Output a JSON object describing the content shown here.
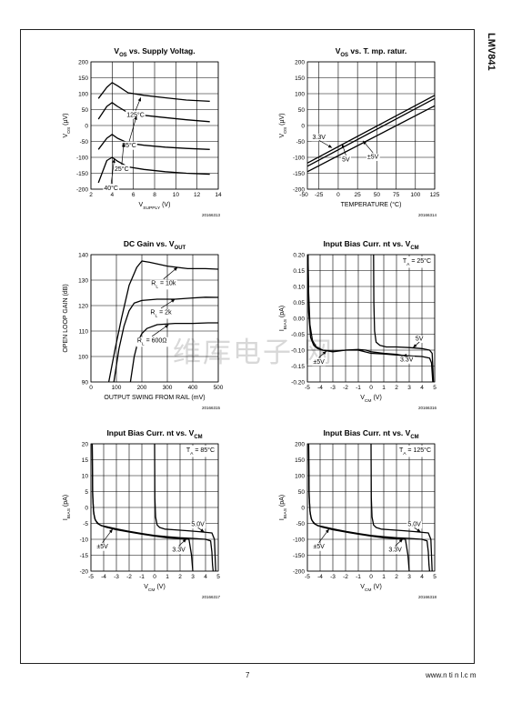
{
  "page": {
    "doc_title": "LMV841",
    "page_number": "7",
    "footer_url": "www.n  ti  n  l.c  m",
    "watermark": "维库电子   网"
  },
  "chart_data": [
    {
      "id": "vos-vs-supply",
      "type": "line",
      "title": "V",
      "title_sub": "OS",
      "title_rest": " vs. Supply Voltag.",
      "ylabel": "V",
      "ylabel_sub": "OS",
      "ylabel_rest": " (µV)",
      "xlabel": "V",
      "xlabel_sub": "SUPPLY",
      "xlabel_rest": " (V)",
      "fig_id": "20166313",
      "xlim": [
        2,
        14
      ],
      "ylim": [
        -200,
        200
      ],
      "xticks": [
        2,
        4,
        6,
        8,
        10,
        12,
        14
      ],
      "yticks": [
        -200,
        -150,
        -100,
        -50,
        0,
        50,
        100,
        150,
        200
      ],
      "series": [
        {
          "x": [
            2.7,
            3.5,
            4.0,
            4.5,
            5.5,
            7,
            9,
            11,
            13.2
          ],
          "y": [
            85,
            120,
            135,
            125,
            103,
            95,
            87,
            80,
            76
          ]
        },
        {
          "x": [
            2.7,
            3.5,
            4.0,
            4.5,
            5.5,
            7,
            9,
            11,
            13.2
          ],
          "y": [
            20,
            60,
            72,
            60,
            40,
            32,
            25,
            18,
            12
          ]
        },
        {
          "x": [
            2.7,
            3.5,
            4.0,
            4.5,
            5.5,
            7,
            9,
            11,
            13.2
          ],
          "y": [
            -75,
            -40,
            -28,
            -40,
            -55,
            -62,
            -68,
            -72,
            -75
          ]
        },
        {
          "x": [
            2.7,
            3.5,
            4.0,
            4.5,
            5.5,
            7,
            9,
            11,
            13.2
          ],
          "y": [
            -180,
            -110,
            -100,
            -112,
            -130,
            -138,
            -145,
            -150,
            -153
          ]
        }
      ],
      "annotations": [
        {
          "text": "125°C",
          "x": 6.2,
          "y": 35,
          "ax": 6.7,
          "ay": 88
        },
        {
          "text": "85°C",
          "x": 5.6,
          "y": -62,
          "ax": 6.3,
          "ay": 30
        },
        {
          "text": "25°C",
          "x": 4.9,
          "y": -135,
          "ax": 5.1,
          "ay": -55
        },
        {
          "text": "40°C",
          "x": 3.9,
          "y": -195,
          "ax": 4.2,
          "ay": -105
        }
      ]
    },
    {
      "id": "vos-vs-temperature",
      "type": "line",
      "title": "V",
      "title_sub": "OS",
      "title_rest": " vs. T. mp. ratur.",
      "ylabel": "V",
      "ylabel_sub": "OS",
      "ylabel_rest": " (µV)",
      "xlabel": "TEMPERATURE (°C)",
      "fig_id": "20166314",
      "xlim": [
        -40,
        125
      ],
      "ylim": [
        -200,
        200
      ],
      "xticks": [
        -50,
        -25,
        0,
        25,
        50,
        75,
        100,
        125
      ],
      "yticks": [
        -200,
        -150,
        -100,
        -50,
        0,
        50,
        100,
        150,
        200
      ],
      "series": [
        {
          "x": [
            -40,
            125
          ],
          "y": [
            -118,
            95
          ]
        },
        {
          "x": [
            -40,
            125
          ],
          "y": [
            -128,
            85
          ]
        },
        {
          "x": [
            -40,
            125
          ],
          "y": [
            -145,
            62
          ]
        }
      ],
      "annotations": [
        {
          "text": "3.3V",
          "x": -25,
          "y": -35,
          "ax": -8,
          "ay": -70
        },
        {
          "text": "5V",
          "x": 10,
          "y": -105,
          "ax": 5,
          "ay": -58
        },
        {
          "text": "±5V",
          "x": 45,
          "y": -97,
          "ax": 32,
          "ay": -48
        }
      ]
    },
    {
      "id": "dc-gain-vs-vout",
      "type": "line",
      "title": "DC Gain vs. V",
      "title_sub": "OUT",
      "title_rest": "",
      "ylabel": "OPEN LOOP GAIN (dB)",
      "xlabel": "OUTPUT SWING FROM RAIL (mV)",
      "fig_id": "20166315",
      "xlim": [
        0,
        500
      ],
      "ylim": [
        90,
        140
      ],
      "xticks": [
        0,
        100,
        200,
        300,
        400,
        500
      ],
      "yticks": [
        90,
        100,
        110,
        120,
        130,
        140
      ],
      "series": [
        {
          "x": [
            70,
            95,
            120,
            150,
            180,
            200,
            230,
            300,
            380,
            450,
            500
          ],
          "y": [
            90,
            103,
            115,
            128,
            135,
            137.5,
            137,
            135.5,
            134.5,
            134.5,
            134.3
          ]
        },
        {
          "x": [
            90,
            110,
            130,
            150,
            170,
            200,
            260,
            330,
            400,
            450,
            500
          ],
          "y": [
            90,
            103,
            112,
            118,
            121,
            122,
            122.5,
            122.5,
            123,
            123.3,
            123.2
          ]
        },
        {
          "x": [
            155,
            170,
            185,
            200,
            220,
            260,
            330,
            400,
            460,
            500
          ],
          "y": [
            90,
            100,
            106,
            109,
            111,
            112.5,
            113,
            113,
            113.2,
            113.2
          ]
        }
      ],
      "annotations": [
        {
          "text": "R",
          "sub": "L",
          "rest": " = 10k",
          "x": 285,
          "y": 129,
          "ax": 340,
          "ay": 135
        },
        {
          "text": "R",
          "sub": "L",
          "rest": " = 2k",
          "x": 275,
          "y": 117.5,
          "ax": 330,
          "ay": 122.5
        },
        {
          "text": "R",
          "sub": "L",
          "rest": " = 600Ω",
          "x": 240,
          "y": 106.5,
          "ax": 305,
          "ay": 112.5
        }
      ]
    },
    {
      "id": "ibias-vs-vcm-25c",
      "type": "line",
      "title": "Input Bias Curr. nt vs. V",
      "title_sub": "CM",
      "title_rest": "",
      "ylabel": "I",
      "ylabel_sub": "BIAS",
      "ylabel_rest": " (pA)",
      "xlabel": "V",
      "xlabel_sub": "CM",
      "xlabel_rest": " (V)",
      "fig_id": "20166316",
      "xlim": [
        -5,
        5
      ],
      "ylim": [
        -0.2,
        0.2
      ],
      "xticks": [
        -5,
        -4,
        -3,
        -2,
        -1,
        0,
        1,
        2,
        3,
        4,
        5
      ],
      "yticks": [
        -0.2,
        -0.15,
        -0.1,
        -0.05,
        0,
        0.05,
        0.1,
        0.15,
        0.2
      ],
      "yticklabels": [
        "-0.20",
        "-0.15",
        "-0.10",
        "-0.05",
        "0.00",
        "0.05",
        "0.10",
        "0.15",
        "0.20"
      ],
      "box_label": {
        "text": "T",
        "sub": "A",
        "rest": " = 25°C"
      },
      "series": [
        {
          "x": [
            -4.95,
            -4.9,
            -4.8,
            -4.6,
            -4.3,
            -3.8,
            -3,
            -2,
            -1,
            -0.5,
            0,
            1,
            2,
            3,
            4,
            4.6,
            4.75,
            4.8,
            4.85
          ],
          "y": [
            0.2,
            0.08,
            -0.02,
            -0.07,
            -0.09,
            -0.1,
            -0.105,
            -0.1,
            -0.1,
            -0.105,
            -0.11,
            -0.112,
            -0.115,
            -0.118,
            -0.12,
            -0.125,
            -0.14,
            -0.17,
            -0.2
          ]
        },
        {
          "x": [
            0.2,
            0.22,
            0.28,
            0.4,
            0.7,
            1.2,
            2,
            3,
            4,
            4.6,
            4.8,
            4.85,
            4.9
          ],
          "y": [
            0.2,
            0.05,
            -0.04,
            -0.075,
            -0.085,
            -0.09,
            -0.09,
            -0.092,
            -0.095,
            -0.1,
            -0.11,
            -0.15,
            -0.2
          ]
        },
        {
          "x": [
            -4.95,
            -4.9,
            -4.75,
            -4.5,
            -4.2,
            -3.8,
            -3,
            -2,
            -1,
            -0.4,
            0,
            1,
            2,
            3,
            3.3
          ],
          "y": [
            0.2,
            0.02,
            -0.06,
            -0.085,
            -0.095,
            -0.1,
            -0.103,
            -0.1,
            -0.098,
            -0.1,
            -0.105,
            -0.11,
            -0.113,
            -0.12,
            -0.13
          ]
        }
      ],
      "annotations": [
        {
          "text": "5V",
          "x": 3.8,
          "y": -0.063,
          "ax": 3.3,
          "ay": -0.092
        },
        {
          "text": "±5V",
          "x": -4.1,
          "y": -0.135,
          "ax": -3.5,
          "ay": -0.103
        },
        {
          "text": "3.3V",
          "x": 2.8,
          "y": -0.128,
          "ax": 2.5,
          "ay": -0.117
        }
      ]
    },
    {
      "id": "ibias-vs-vcm-85c",
      "type": "line",
      "title": "Input Bias Curr. nt vs. V",
      "title_sub": "CM",
      "title_rest": "",
      "ylabel": "I",
      "ylabel_sub": "BIAS",
      "ylabel_rest": " (pA)",
      "xlabel": "V",
      "xlabel_sub": "CM",
      "xlabel_rest": " (V)",
      "fig_id": "20166317",
      "xlim": [
        -5,
        5
      ],
      "ylim": [
        -20,
        20
      ],
      "xticks": [
        -5,
        -4,
        -3,
        -2,
        -1,
        0,
        1,
        2,
        3,
        4,
        5
      ],
      "yticks": [
        -20,
        -15,
        -10,
        -5,
        0,
        5,
        10,
        15,
        20
      ],
      "box_label": {
        "text": "T",
        "sub": "A",
        "rest": " = 85°C"
      },
      "series": [
        {
          "x": [
            -4.9,
            -4.87,
            -4.8,
            -4.7,
            -4.5,
            -4.2,
            -3.8,
            -3,
            -2,
            -1,
            0,
            1,
            2,
            3,
            4,
            4.4,
            4.5,
            4.55,
            4.6
          ],
          "y": [
            20,
            5,
            -1,
            -3.5,
            -5,
            -5.7,
            -6,
            -6.7,
            -7.5,
            -8.2,
            -8.8,
            -9.2,
            -9.5,
            -9.7,
            -10,
            -10.5,
            -14,
            -18,
            -20
          ]
        },
        {
          "x": [
            0,
            0.02,
            0.08,
            0.2,
            0.4,
            0.8,
            1.5,
            2.5,
            3.5,
            4.5,
            4.7,
            4.75,
            4.8
          ],
          "y": [
            20,
            3,
            -3,
            -5.5,
            -6.3,
            -6.8,
            -7,
            -7.3,
            -7.6,
            -8,
            -10,
            -15,
            -20
          ]
        },
        {
          "x": [
            -4.9,
            -4.86,
            -4.78,
            -4.65,
            -4.4,
            -4.1,
            -3.8,
            -3,
            -2,
            -1,
            0,
            1,
            2,
            2.7,
            2.9,
            3.0
          ],
          "y": [
            20,
            3,
            -2,
            -4,
            -5.2,
            -5.8,
            -6.2,
            -7,
            -7.7,
            -8.4,
            -9,
            -9.5,
            -9.8,
            -10,
            -15,
            -20
          ]
        }
      ],
      "annotations": [
        {
          "text": "5.0V",
          "x": 3.4,
          "y": -5.2,
          "ax": 3.9,
          "ay": -7.7
        },
        {
          "text": "±5V",
          "x": -4.1,
          "y": -12.2,
          "ax": -3.3,
          "ay": -6.8
        },
        {
          "text": "3.3V",
          "x": 1.9,
          "y": -13.2,
          "ax": 2.5,
          "ay": -9.9
        }
      ]
    },
    {
      "id": "ibias-vs-vcm-125c",
      "type": "line",
      "title": "Input Bias Curr. nt vs. V",
      "title_sub": "CM",
      "title_rest": "",
      "ylabel": "I",
      "ylabel_sub": "BIAS",
      "ylabel_rest": " (pA)",
      "xlabel": "V",
      "xlabel_sub": "CM",
      "xlabel_rest": " (V)",
      "fig_id": "20166318",
      "xlim": [
        -5,
        5
      ],
      "ylim": [
        -200,
        200
      ],
      "xticks": [
        -5,
        -4,
        -3,
        -2,
        -1,
        0,
        1,
        2,
        3,
        4,
        5
      ],
      "yticks": [
        -200,
        -150,
        -100,
        -50,
        0,
        50,
        100,
        150,
        200
      ],
      "box_label": {
        "text": "T",
        "sub": "A",
        "rest": " = 125°C"
      },
      "series": [
        {
          "x": [
            -4.9,
            -4.87,
            -4.8,
            -4.7,
            -4.5,
            -4.2,
            -3.8,
            -3,
            -2,
            -1,
            0,
            1,
            2,
            3,
            4,
            4.4,
            4.5,
            4.55,
            4.6
          ],
          "y": [
            200,
            50,
            -10,
            -35,
            -50,
            -57,
            -60,
            -67,
            -75,
            -82,
            -88,
            -92,
            -95,
            -97,
            -100,
            -105,
            -140,
            -180,
            -200
          ]
        },
        {
          "x": [
            0,
            0.02,
            0.08,
            0.2,
            0.4,
            0.8,
            1.5,
            2.5,
            3.5,
            4.5,
            4.7,
            4.75,
            4.8
          ],
          "y": [
            200,
            30,
            -30,
            -55,
            -63,
            -68,
            -70,
            -73,
            -76,
            -80,
            -100,
            -150,
            -200
          ]
        },
        {
          "x": [
            -4.9,
            -4.86,
            -4.78,
            -4.65,
            -4.4,
            -4.1,
            -3.8,
            -3,
            -2,
            -1,
            0,
            1,
            2,
            2.7,
            2.9,
            3.0
          ],
          "y": [
            200,
            30,
            -20,
            -40,
            -52,
            -58,
            -62,
            -70,
            -77,
            -84,
            -90,
            -95,
            -98,
            -100,
            -150,
            -200
          ]
        }
      ],
      "annotations": [
        {
          "text": "5.0V",
          "x": 3.4,
          "y": -52,
          "ax": 3.9,
          "ay": -77
        },
        {
          "text": "±5V",
          "x": -4.1,
          "y": -122,
          "ax": -3.3,
          "ay": -68
        },
        {
          "text": "3.3V",
          "x": 1.9,
          "y": -132,
          "ax": 2.5,
          "ay": -99
        }
      ]
    }
  ]
}
